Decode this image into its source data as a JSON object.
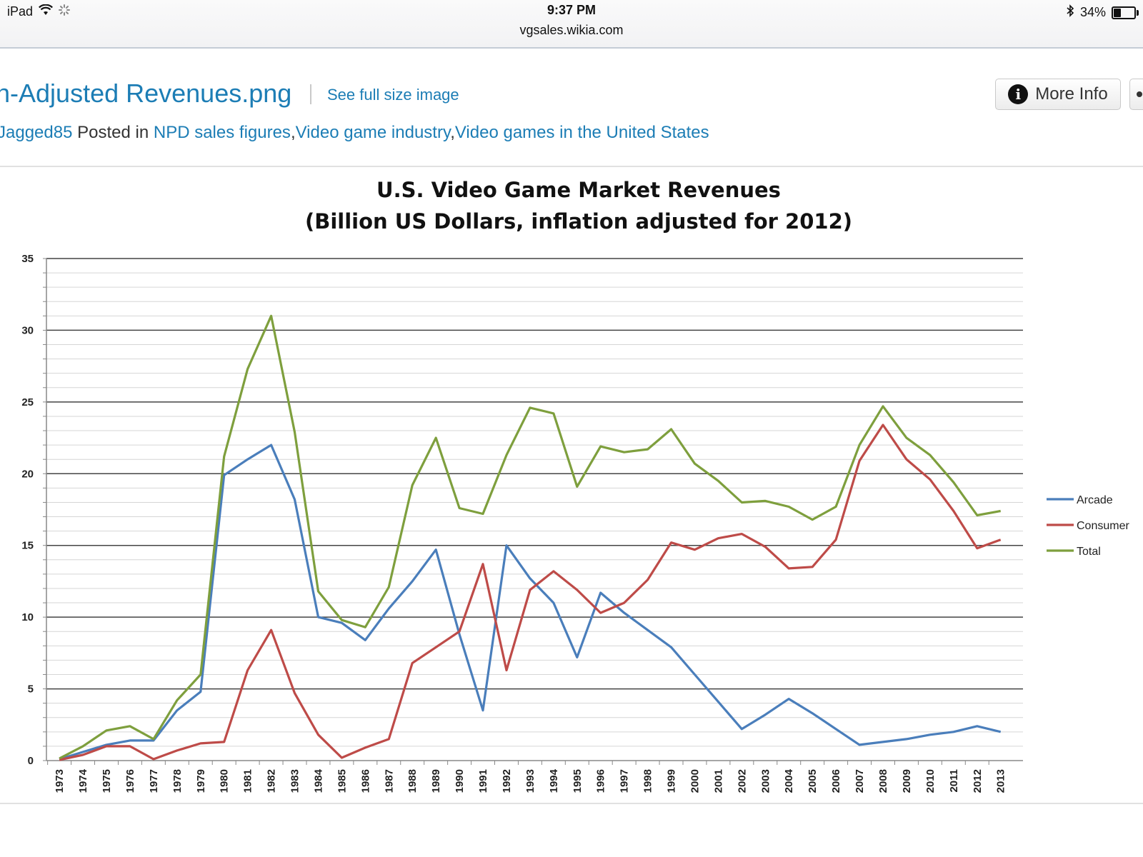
{
  "status_bar": {
    "device": "iPad",
    "time": "9:37 PM",
    "url": "vgsales.wikia.com",
    "battery": "34%",
    "battery_level": 0.34
  },
  "file": {
    "title": "n-Adjusted Revenues.png",
    "see_full_label": "See full size image",
    "more_info_label": "More Info",
    "uploader": "Jagged85",
    "posted_in_label": "Posted in",
    "categories": [
      "NPD sales figures",
      "Video game industry",
      "Video games in the United States"
    ]
  },
  "chart_data": {
    "type": "line",
    "title": "U.S. Video Game Market Revenues",
    "subtitle": "(Billion US Dollars, inflation adjusted for 2012)",
    "xlabel": "",
    "ylabel": "",
    "ylim": [
      0,
      35
    ],
    "yticks": [
      0,
      5,
      10,
      15,
      20,
      25,
      30,
      35
    ],
    "grid": true,
    "legend_position": "right",
    "categories": [
      "1973",
      "1974",
      "1975",
      "1976",
      "1977",
      "1978",
      "1979",
      "1980",
      "1981",
      "1982",
      "1983",
      "1984",
      "1985",
      "1986",
      "1987",
      "1988",
      "1989",
      "1990",
      "1991",
      "1992",
      "1993",
      "1994",
      "1995",
      "1996",
      "1997",
      "1998",
      "1999",
      "2000",
      "2001",
      "2002",
      "2003",
      "2004",
      "2005",
      "2006",
      "2007",
      "2008",
      "2009",
      "2010",
      "2011",
      "2012",
      "2013"
    ],
    "series": [
      {
        "name": "Arcade",
        "color": "#4a7ebb",
        "values": [
          0.1,
          0.6,
          1.1,
          1.4,
          1.4,
          3.5,
          4.8,
          19.9,
          21.0,
          22.0,
          18.2,
          10.0,
          9.6,
          8.4,
          10.6,
          12.5,
          14.7,
          8.8,
          3.5,
          15.0,
          12.7,
          11.0,
          7.2,
          11.7,
          10.3,
          9.1,
          7.9,
          6.0,
          4.1,
          2.2,
          3.2,
          4.3,
          3.3,
          2.2,
          1.1,
          1.3,
          1.5,
          1.8,
          2.0,
          2.4,
          2.0
        ]
      },
      {
        "name": "Consumer",
        "color": "#be4b48",
        "values": [
          0.05,
          0.4,
          1.0,
          1.0,
          0.1,
          0.7,
          1.2,
          1.3,
          6.3,
          9.1,
          4.7,
          1.8,
          0.2,
          0.9,
          1.5,
          6.8,
          7.9,
          9.0,
          13.7,
          6.3,
          11.9,
          13.2,
          11.9,
          10.3,
          11.0,
          12.6,
          15.2,
          14.7,
          15.5,
          15.8,
          14.9,
          13.4,
          13.5,
          15.4,
          20.9,
          23.4,
          21.0,
          19.6,
          17.4,
          14.8,
          15.4
        ]
      },
      {
        "name": "Total",
        "color": "#7e9f3d",
        "values": [
          0.15,
          1.0,
          2.1,
          2.4,
          1.5,
          4.2,
          6.0,
          21.2,
          27.3,
          31.0,
          22.9,
          11.8,
          9.8,
          9.3,
          12.1,
          19.2,
          22.5,
          17.6,
          17.2,
          21.3,
          24.6,
          24.2,
          19.1,
          21.9,
          21.5,
          21.7,
          23.1,
          20.7,
          19.5,
          18.0,
          18.1,
          17.7,
          16.8,
          17.7,
          22.0,
          24.7,
          22.5,
          21.3,
          19.4,
          17.1,
          17.4
        ]
      }
    ]
  }
}
